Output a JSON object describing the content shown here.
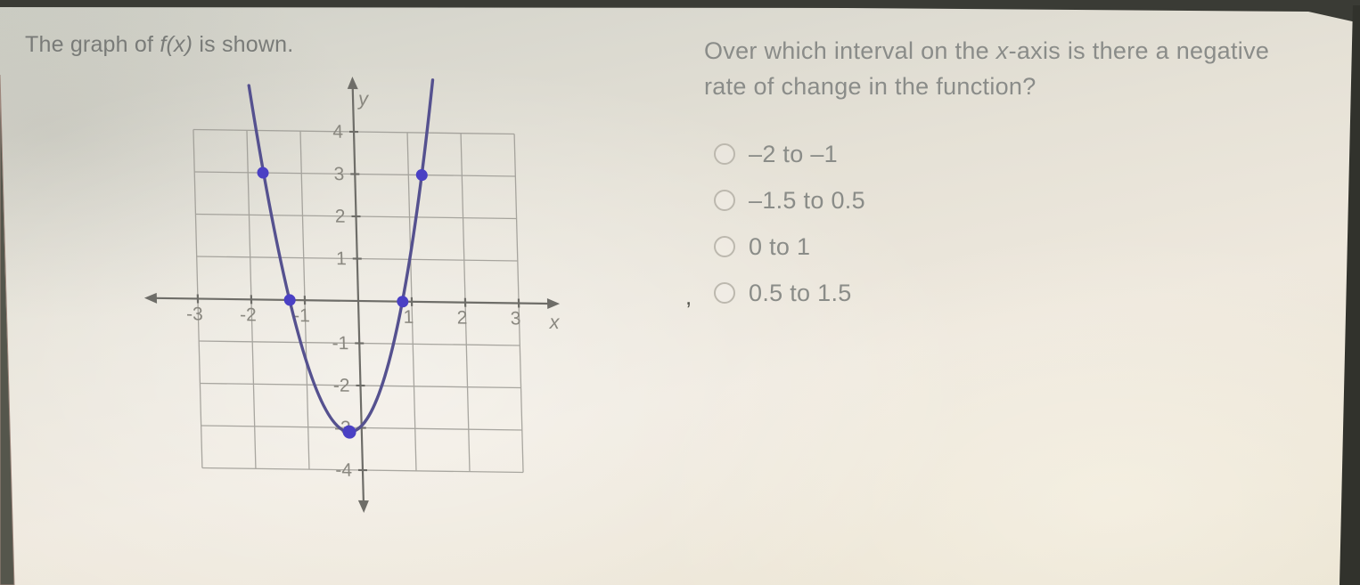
{
  "prompt": {
    "pre": "The graph of ",
    "func": "f(x)",
    "post": " is shown."
  },
  "question": {
    "line1_pre": "Over which interval on the ",
    "line1_var": "x",
    "line1_post": "-axis is there a negative",
    "line2": "rate of change in the function?",
    "options": [
      "–2 to –1",
      "–1.5 to 0.5",
      "0 to 1",
      "0.5 to 1.5"
    ],
    "stray_mark": ","
  },
  "chart_data": {
    "type": "line",
    "title": "",
    "description": "Upward-opening parabola f(x), vertex near (-0.2, -3.1), decreasing left of vertex and increasing right of vertex",
    "xlabel": "x",
    "ylabel": "y",
    "x_tick_labels": [
      -3,
      -2,
      -1,
      1,
      2,
      3
    ],
    "y_tick_labels": [
      4,
      3,
      2,
      1,
      -1,
      -2,
      -3,
      -4
    ],
    "xlim": [
      -3.8,
      3.8
    ],
    "ylim": [
      -4.9,
      5.3
    ],
    "grid": {
      "on": true,
      "x_min": -3,
      "x_max": 3,
      "y_min": -4,
      "y_max": 4
    },
    "function": {
      "form": "a*(x-h)^2+k",
      "a": 2.79,
      "h": -0.23,
      "k": -3.1
    },
    "marked_points": [
      [
        -1.72,
        3
      ],
      [
        1.25,
        3
      ],
      [
        -1.28,
        0
      ],
      [
        0.83,
        0
      ],
      [
        -0.23,
        -3.1
      ]
    ],
    "colors": {
      "curve": "#55518f",
      "points": "#4a40c4",
      "grid": "#96948e",
      "axis": "#6e6d68",
      "tick_text": "#8a8880"
    }
  }
}
